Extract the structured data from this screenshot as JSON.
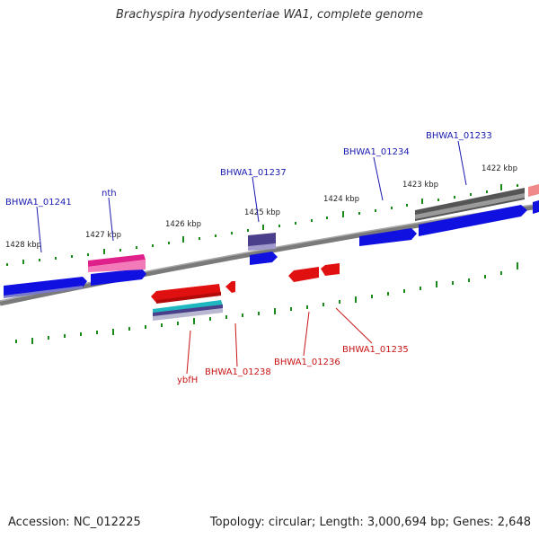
{
  "title": "Brachyspira hyodysenteriae WA1, complete genome",
  "footer": {
    "accession": "Accession: NC_012225",
    "topology": "Topology: circular; Length: 3,000,694 bp; Genes: 2,648"
  },
  "ticks": [
    "1428 kbp",
    "1427 kbp",
    "1426 kbp",
    "1425 kbp",
    "1424 kbp",
    "1423 kbp",
    "1422 kbp"
  ],
  "labels_top": [
    "BHWA1_01241",
    "nth",
    "BHWA1_01237",
    "BHWA1_01234",
    "BHWA1_01233"
  ],
  "labels_bottom": [
    "ybfH",
    "BHWA1_01238",
    "BHWA1_01236",
    "BHWA1_01235"
  ],
  "colors": {
    "forward": "#1010e0",
    "reverse": "#e01010",
    "pink": "#e0208a",
    "purple": "#4a3f8a",
    "gray": "#666666",
    "cyan": "#20b8c0",
    "backbone": "#7a7a7a",
    "tick": "#1a8a1a",
    "label_top": "#1a1ab0",
    "label_bottom": "#c81414"
  }
}
